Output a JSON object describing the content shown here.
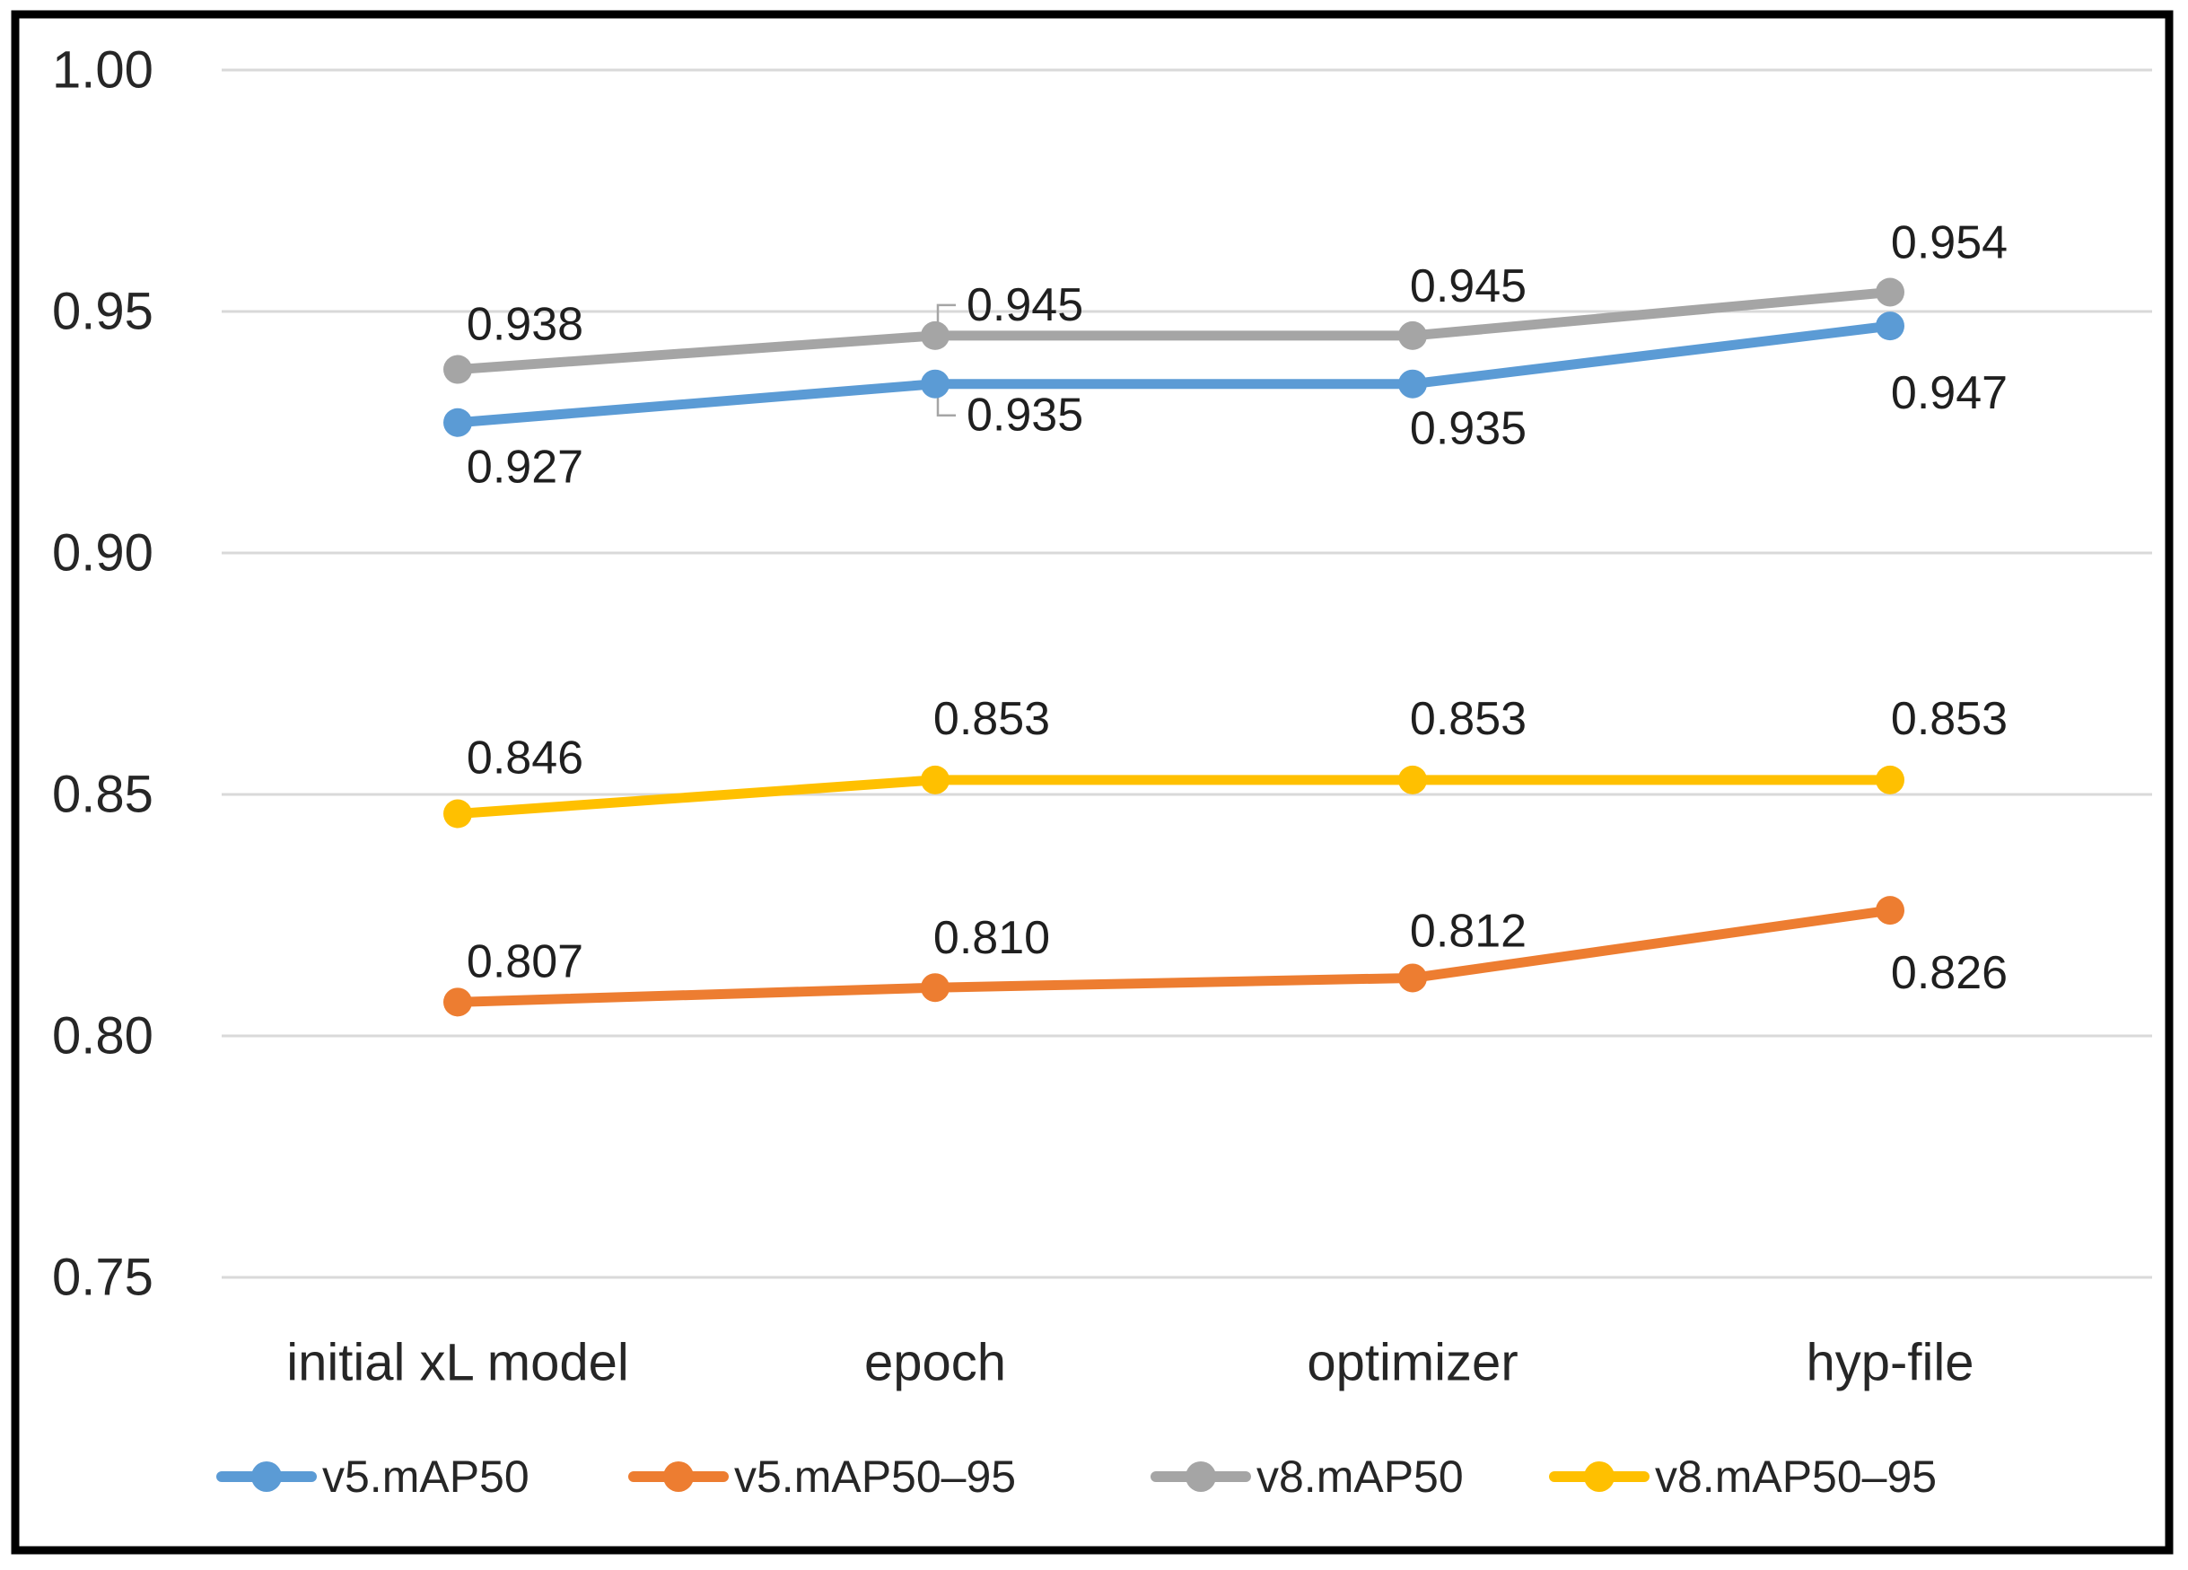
{
  "chart_data": {
    "type": "line",
    "title": "",
    "categories": [
      "initial xL model",
      "epoch",
      "optimizer",
      "hyp-file"
    ],
    "series": [
      {
        "name": "v5.mAP50",
        "color": "#5B9BD5",
        "values": [
          0.927,
          0.935,
          0.935,
          0.947
        ],
        "value_labels": [
          "0.927",
          "0.935",
          "0.935",
          "0.947"
        ]
      },
      {
        "name": "v5.mAP50–95",
        "color": "#ED7D31",
        "values": [
          0.807,
          0.81,
          0.812,
          0.826
        ],
        "value_labels": [
          "0.807",
          "0.810",
          "0.812",
          "0.826"
        ]
      },
      {
        "name": "v8.mAP50",
        "color": "#A5A5A5",
        "values": [
          0.938,
          0.945,
          0.945,
          0.954
        ],
        "value_labels": [
          "0.938",
          "0.945",
          "0.945",
          "0.954"
        ]
      },
      {
        "name": "v8.mAP50–95",
        "color": "#FFC000",
        "values": [
          0.846,
          0.853,
          0.853,
          0.853
        ],
        "value_labels": [
          "0.846",
          "0.853",
          "0.853",
          "0.853"
        ]
      }
    ],
    "y_axis": {
      "min": 0.75,
      "max": 1.0,
      "tick_step": 0.05,
      "tick_values": [
        1.0,
        0.95,
        0.9,
        0.85,
        0.8,
        0.75
      ],
      "tick_labels": [
        "1.00",
        "0.95",
        "0.90",
        "0.85",
        "0.80",
        "0.75"
      ]
    },
    "grid": true,
    "legend_position": "bottom",
    "legend_entries": [
      "v5.mAP50",
      "v5.mAP50–95",
      "v8.mAP50",
      "v8.mAP50–95"
    ],
    "colors": {
      "gridline": "#D9D9D9",
      "axis_text": "#262626",
      "data_label_text": "#1F1F1F",
      "leader_line": "#A5A5A5",
      "border": "#000000",
      "background": "#FFFFFF"
    }
  }
}
